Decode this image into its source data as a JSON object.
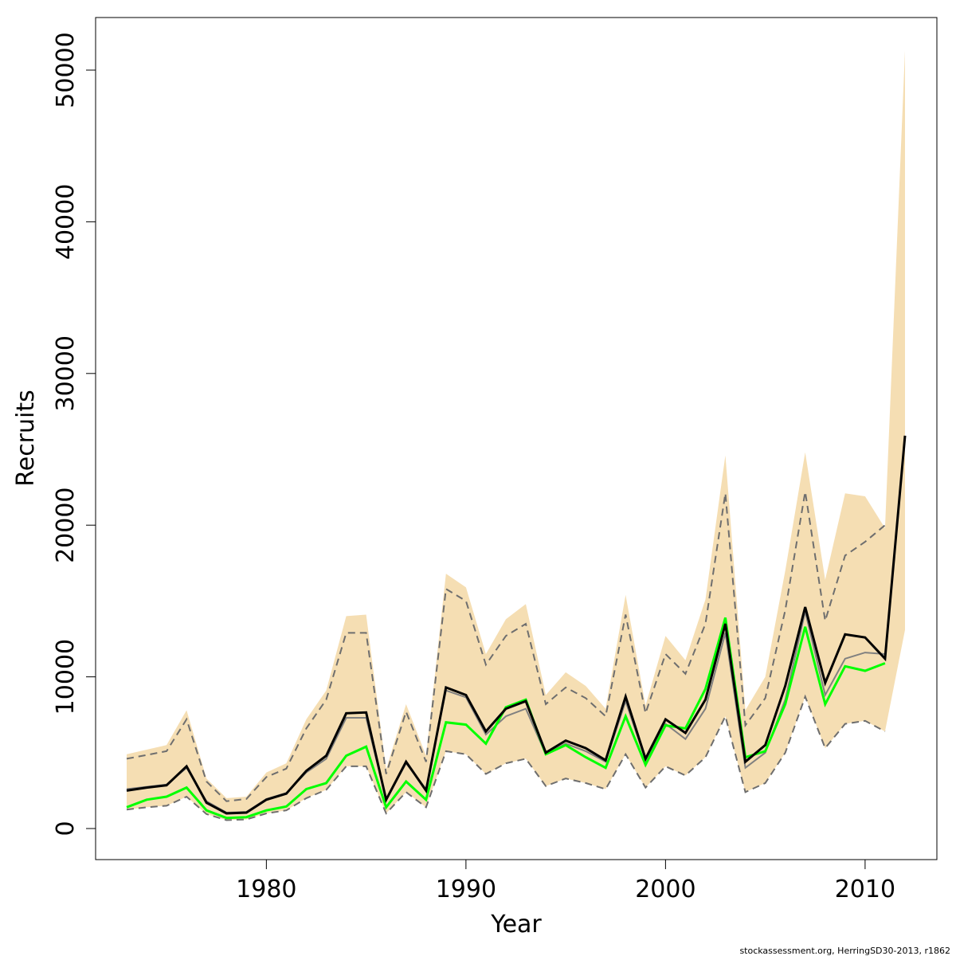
{
  "chart_data": {
    "type": "line",
    "title": "",
    "xlabel": "Year",
    "ylabel": "Recruits",
    "footer": "stockassessment.org, HerringSD30-2013, r1862",
    "xlim": [
      1973,
      2012
    ],
    "ylim": [
      0,
      52000
    ],
    "x_ticks": [
      1980,
      1990,
      2000,
      2010
    ],
    "y_ticks": [
      0,
      10000,
      20000,
      30000,
      40000,
      50000
    ],
    "grid": false,
    "legend": "none",
    "colors": {
      "band": "#f5deb3",
      "estimate": "#000000",
      "previous": "#808080",
      "dashed_ci": "#6e6e6e",
      "green": "#00ff00"
    },
    "years": [
      1973,
      1974,
      1975,
      1976,
      1977,
      1978,
      1979,
      1980,
      1981,
      1982,
      1983,
      1984,
      1985,
      1986,
      1987,
      1988,
      1989,
      1990,
      1991,
      1992,
      1993,
      1994,
      1995,
      1996,
      1997,
      1998,
      1999,
      2000,
      2001,
      2002,
      2003,
      2004,
      2005,
      2006,
      2007,
      2008,
      2009,
      2010,
      2011,
      2012
    ],
    "series": [
      {
        "values": [
          2500,
          2700,
          2850,
          4100,
          1700,
          1000,
          1050,
          1900,
          2300,
          3800,
          4800,
          7600,
          7650,
          1900,
          4400,
          2500,
          9300,
          8800,
          6400,
          7900,
          8400,
          5000,
          5800,
          5300,
          4500,
          8700,
          4600,
          7200,
          6300,
          8500,
          13500,
          4400,
          5500,
          9400,
          14600,
          9600,
          12800,
          12600,
          11200,
          25900
        ]
      },
      {
        "values": [
          2600,
          2750,
          2900,
          4000,
          1800,
          1050,
          1100,
          1950,
          2350,
          3700,
          4600,
          7300,
          7300,
          1900,
          4300,
          2600,
          9100,
          8650,
          6200,
          7400,
          7900,
          4900,
          5600,
          5100,
          4400,
          8400,
          4500,
          6900,
          5900,
          7900,
          12900,
          4000,
          5000,
          8500,
          14300,
          8800,
          11200,
          11600,
          11500
        ]
      },
      {
        "values": [
          1400,
          1900,
          2100,
          2700,
          1200,
          700,
          750,
          1200,
          1450,
          2600,
          3000,
          4800,
          5400,
          1400,
          3100,
          1900,
          7000,
          6850,
          5600,
          8000,
          8500,
          4900,
          5500,
          4700,
          4000,
          7400,
          4200,
          6800,
          6600,
          9200,
          13900,
          4700,
          5100,
          8200,
          13300,
          8200,
          10700,
          10400,
          10900
        ]
      }
    ],
    "band_upper": [
      4900,
      5200,
      5500,
      7800,
      3300,
      2000,
      2100,
      3700,
      4300,
      7200,
      9100,
      14000,
      14100,
      3900,
      8200,
      4800,
      16800,
      15900,
      11500,
      13800,
      14800,
      8800,
      10300,
      9400,
      7900,
      15400,
      8100,
      12700,
      11100,
      15100,
      24600,
      7800,
      10000,
      17000,
      24800,
      16400,
      22100,
      21900,
      19800,
      51300
    ],
    "band_lower": [
      1250,
      1400,
      1500,
      2100,
      950,
      550,
      600,
      1000,
      1200,
      2000,
      2550,
      4100,
      4100,
      1000,
      2400,
      1400,
      5100,
      4900,
      3600,
      4300,
      4600,
      2800,
      3300,
      3000,
      2600,
      4900,
      2700,
      4100,
      3500,
      4700,
      7400,
      2400,
      3000,
      5000,
      8700,
      5300,
      6900,
      7100,
      6400,
      13100
    ],
    "ci_dashed_upper": [
      4600,
      4850,
      5100,
      7200,
      3100,
      1800,
      1950,
      3400,
      3950,
      6600,
      8500,
      12900,
      12900,
      3600,
      7700,
      4400,
      15800,
      15000,
      10800,
      12700,
      13500,
      8200,
      9300,
      8600,
      7400,
      14100,
      7600,
      11500,
      10200,
      13500,
      22100,
      6800,
      8600,
      14400,
      22200,
      13700,
      18000,
      18900,
      20000
    ],
    "ci_dashed_lower": [
      1250,
      1400,
      1500,
      2100,
      950,
      550,
      600,
      1000,
      1200,
      2000,
      2550,
      4100,
      4100,
      1000,
      2400,
      1400,
      5100,
      4900,
      3600,
      4300,
      4600,
      2800,
      3300,
      3000,
      2600,
      4900,
      2700,
      4100,
      3500,
      4700,
      7400,
      2400,
      3000,
      5000,
      8700,
      5300,
      6900,
      7100,
      6400
    ]
  }
}
